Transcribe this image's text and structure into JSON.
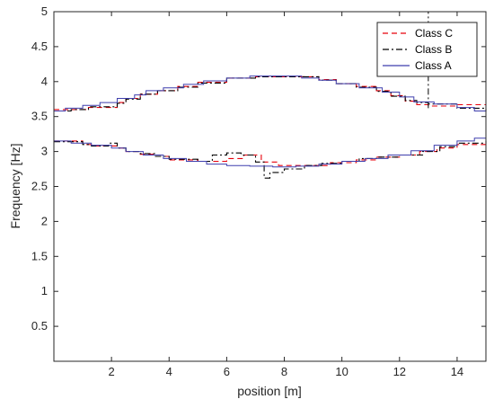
{
  "chart_data": {
    "type": "line",
    "title": "",
    "xlabel": "position [m]",
    "ylabel": "Frequency [Hz]",
    "xlim": [
      0,
      15
    ],
    "ylim": [
      0,
      5
    ],
    "x_ticks": [
      2,
      4,
      6,
      8,
      10,
      12,
      14
    ],
    "y_ticks": [
      0.5,
      1,
      1.5,
      2,
      2.5,
      3,
      3.5,
      4,
      4.5,
      5
    ],
    "grid": false,
    "legend_position": "top-right",
    "series": [
      {
        "name": "Class C",
        "style": "dashed",
        "color": "#e8000b",
        "upper": {
          "x": [
            0,
            0.6,
            1.2,
            2.2,
            2.5,
            3.0,
            3.6,
            4.3,
            5.0,
            6.0,
            7.0,
            8.0,
            9.2,
            9.8,
            10.5,
            11.2,
            11.7,
            12.2,
            12.6,
            13.0,
            14.0,
            15.0
          ],
          "y": [
            3.6,
            3.6,
            3.63,
            3.7,
            3.76,
            3.82,
            3.87,
            3.93,
            3.99,
            4.05,
            4.07,
            4.07,
            4.03,
            3.97,
            3.93,
            3.87,
            3.8,
            3.72,
            3.67,
            3.65,
            3.67,
            3.67
          ]
        },
        "lower": {
          "x": [
            0,
            1.0,
            1.3,
            2.2,
            2.5,
            3.0,
            3.5,
            4.0,
            5.0,
            6.0,
            6.6,
            7.2,
            7.8,
            8.5,
            9.0,
            9.6,
            10.5,
            11.2,
            12.0,
            12.7,
            13.3,
            14.0,
            15.0
          ],
          "y": [
            3.15,
            3.1,
            3.08,
            3.05,
            3.0,
            2.96,
            2.93,
            2.88,
            2.86,
            2.9,
            2.95,
            2.85,
            2.8,
            2.8,
            2.8,
            2.84,
            2.88,
            2.92,
            2.95,
            3.0,
            3.05,
            3.1,
            3.15
          ]
        }
      },
      {
        "name": "Class B",
        "style": "dashdot",
        "color": "#000000",
        "upper": {
          "x": [
            0,
            0.6,
            1.2,
            2.2,
            2.5,
            3.0,
            3.6,
            4.3,
            5.0,
            6.0,
            7.0,
            8.0,
            9.2,
            9.8,
            10.5,
            11.2,
            11.7,
            12.2,
            12.6,
            13.0,
            14.0,
            15.0
          ],
          "y": [
            3.58,
            3.6,
            3.64,
            3.69,
            3.75,
            3.82,
            3.87,
            3.92,
            3.98,
            4.05,
            4.07,
            4.07,
            4.02,
            3.97,
            3.92,
            3.86,
            3.79,
            3.73,
            3.7,
            3.68,
            3.62,
            3.57
          ]
        },
        "lower": {
          "x": [
            0,
            1.0,
            1.3,
            1.9,
            2.2,
            2.5,
            3.0,
            3.5,
            4.0,
            5.0,
            5.5,
            6.0,
            6.5,
            7.0,
            7.3,
            7.5,
            8.0,
            8.7,
            9.3,
            10.0,
            10.6,
            11.2,
            12.0,
            12.8,
            13.4,
            14.0,
            15.0
          ],
          "y": [
            3.14,
            3.1,
            3.08,
            3.12,
            3.05,
            3.0,
            2.97,
            2.93,
            2.89,
            2.86,
            2.95,
            2.98,
            2.95,
            2.85,
            2.62,
            2.7,
            2.75,
            2.8,
            2.83,
            2.86,
            2.9,
            2.92,
            2.95,
            3.0,
            3.07,
            3.12,
            3.15
          ]
        },
        "vertical_line": {
          "x": 13.0,
          "y": [
            3.62,
            5.0
          ]
        }
      },
      {
        "name": "Class A",
        "style": "solid",
        "color": "#3f3fad",
        "upper": {
          "x": [
            0,
            0.4,
            1.0,
            1.6,
            2.2,
            2.8,
            3.2,
            3.8,
            4.5,
            5.2,
            6.0,
            6.8,
            7.8,
            8.6,
            9.2,
            9.8,
            10.6,
            11.4,
            12.0,
            12.5,
            13.2,
            14.0,
            14.6,
            15.0
          ],
          "y": [
            3.58,
            3.62,
            3.66,
            3.7,
            3.76,
            3.81,
            3.87,
            3.91,
            3.96,
            4.01,
            4.05,
            4.08,
            4.08,
            4.05,
            4.02,
            3.97,
            3.91,
            3.85,
            3.78,
            3.71,
            3.68,
            3.63,
            3.58,
            3.54
          ]
        },
        "lower": {
          "x": [
            0,
            0.6,
            1.3,
            2.0,
            2.5,
            3.1,
            3.8,
            4.6,
            5.3,
            6.0,
            6.8,
            7.6,
            8.4,
            9.2,
            10.0,
            10.8,
            11.6,
            12.4,
            13.2,
            14.0,
            14.6,
            15.0
          ],
          "y": [
            3.15,
            3.12,
            3.09,
            3.05,
            3.0,
            2.95,
            2.9,
            2.86,
            2.82,
            2.8,
            2.79,
            2.78,
            2.79,
            2.82,
            2.86,
            2.9,
            2.95,
            3.01,
            3.09,
            3.15,
            3.19,
            3.21
          ]
        }
      }
    ]
  }
}
